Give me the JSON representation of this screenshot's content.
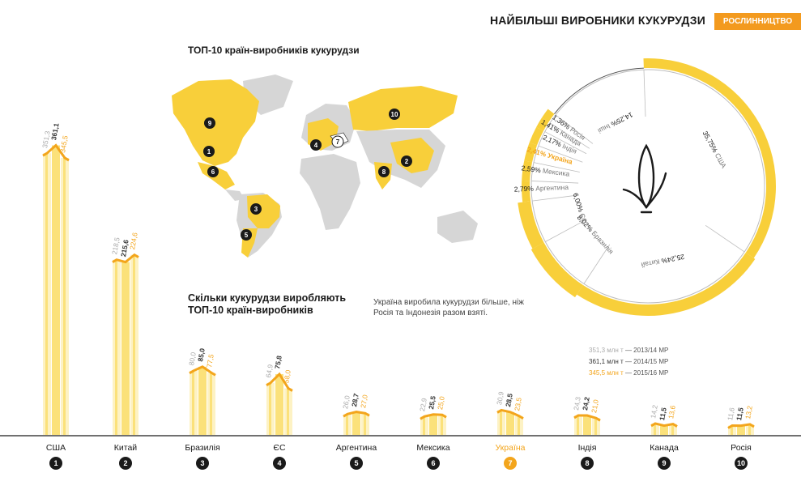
{
  "header": {
    "title": "НАЙБІЛЬШІ ВИРОБНИКИ КУКУРУДЗИ",
    "badge": "РОСЛИННИЦТВО"
  },
  "map": {
    "title": "ТОП-10 країн-виробників кукурудзи"
  },
  "bars_section": {
    "title_line1": "Скільки кукурудзи виробляють",
    "title_line2": "ТОП-10 країн-виробників"
  },
  "note": "Україна виробила кукурудзи більше, ніж Росія та Індонезія разом взяті.",
  "legend": [
    {
      "value": "351,3 млн т",
      "period": "— 2013/14 МР",
      "color": "#aaaaaa"
    },
    {
      "value": "361,1 млн т",
      "period": "— 2014/15 МР",
      "color": "#333333"
    },
    {
      "value": "345,5 млн т",
      "period": "— 2015/16 МР",
      "color": "#f3a51c"
    }
  ],
  "colors": {
    "bar": "#fbe17a",
    "bar_light": "#fdf2c4",
    "accent": "#f3a51c",
    "map_highlight": "#f8cf3a",
    "map_base": "#d6d6d6"
  },
  "chart_data": [
    {
      "type": "bar",
      "categories": [
        "США",
        "Китай",
        "Бразилія",
        "ЄС",
        "Аргентина",
        "Мексика",
        "Україна",
        "Індія",
        "Канада",
        "Росія"
      ],
      "ranks": [
        "1",
        "2",
        "3",
        "4",
        "5",
        "6",
        "7",
        "8",
        "9",
        "10"
      ],
      "highlight": "Україна",
      "series": [
        {
          "name": "2013/14 МР",
          "values": [
            351.3,
            218.5,
            80.0,
            64.9,
            26.0,
            22.9,
            30.9,
            24.3,
            14.2,
            11.6
          ],
          "labels": [
            "351,3",
            "218,5",
            "80,0",
            "64,9",
            "26,0",
            "22,9",
            "30,9",
            "24,3",
            "14,2",
            "11,6"
          ],
          "color": "#aaaaaa"
        },
        {
          "name": "2014/15 МР",
          "values": [
            361.1,
            215.6,
            85.0,
            75.8,
            28.7,
            25.5,
            28.5,
            24.2,
            11.5,
            11.5
          ],
          "labels": [
            "361,1",
            "215,6",
            "85,0",
            "75,8",
            "28,7",
            "25,5",
            "28,5",
            "24,2",
            "11,5",
            "11,5"
          ],
          "color": "#333333"
        },
        {
          "name": "2015/16 МР",
          "values": [
            345.5,
            224.6,
            77.5,
            58.0,
            27.0,
            25.0,
            23.5,
            21.0,
            13.6,
            13.2
          ],
          "labels": [
            "345,5",
            "224,6",
            "77,5",
            "58,0",
            "27,0",
            "25,0",
            "23,5",
            "21,0",
            "13,6",
            "13,2"
          ],
          "color": "#f3a51c"
        }
      ]
    },
    {
      "type": "pie",
      "slices": [
        {
          "label": "США",
          "value": 35.75,
          "text": "35,75%"
        },
        {
          "label": "Китай",
          "value": 25.24,
          "text": "25,24%"
        },
        {
          "label": "Бразилія",
          "value": 8.02,
          "text": "8,02%"
        },
        {
          "label": "ЄС",
          "value": 6.0,
          "text": "6,00%"
        },
        {
          "label": "Аргентина",
          "value": 2.79,
          "text": "2,79%"
        },
        {
          "label": "Мексика",
          "value": 2.59,
          "text": "2,59%"
        },
        {
          "label": "Україна",
          "value": 2.41,
          "text": "2,41%"
        },
        {
          "label": "Індія",
          "value": 2.17,
          "text": "2,17%"
        },
        {
          "label": "Канада",
          "value": 1.41,
          "text": "1,41%"
        },
        {
          "label": "Росія",
          "value": 1.36,
          "text": "1,36%"
        },
        {
          "label": "Інші",
          "value": 14.25,
          "text": "14,25%"
        }
      ]
    }
  ]
}
